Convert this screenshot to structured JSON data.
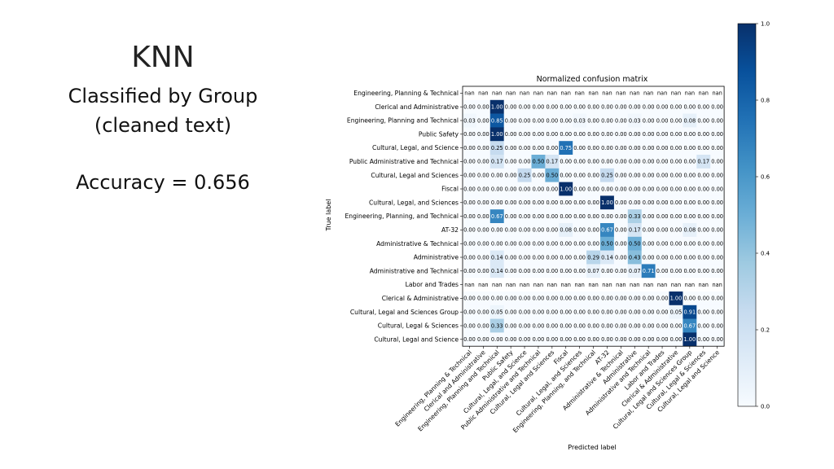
{
  "slide": {
    "title": "KNN",
    "subtitle_line1": "Classified by Group",
    "subtitle_line2": "(cleaned text)",
    "accuracy": "Accuracy = 0.656"
  },
  "chart_data": {
    "type": "heatmap",
    "title": "Normalized confusion matrix",
    "xlabel": "Predicted label",
    "ylabel": "True label",
    "labels": [
      "Engineering, Planning & Technical",
      "Clerical and Administrative",
      "Engineering, Planning and Technical",
      "Public Safety",
      "Cultural, Legal, and Science",
      "Public Administrative and Technical",
      "Cultural, Legal and Sciences",
      "Fiscal",
      "Cultural, Legal, and Sciences",
      "Engineering, Planning, and Technical",
      "AT-32",
      "Administrative & Technical",
      "Administrative",
      "Administrative and Technical",
      "Labor and Trades",
      "Clerical & Administrative",
      "Cultural, Legal and Sciences Group",
      "Cultural, Legal & Sciences",
      "Cultural, Legal and Science"
    ],
    "matrix": [
      [
        "nan",
        "nan",
        "nan",
        "nan",
        "nan",
        "nan",
        "nan",
        "nan",
        "nan",
        "nan",
        "nan",
        "nan",
        "nan",
        "nan",
        "nan",
        "nan",
        "nan",
        "nan",
        "nan"
      ],
      [
        0,
        0,
        1.0,
        0,
        0,
        0,
        0,
        0,
        0,
        0,
        0,
        0,
        0,
        0,
        0,
        0,
        0,
        0,
        0
      ],
      [
        0.03,
        0,
        0.85,
        0,
        0,
        0,
        0,
        0,
        0.03,
        0,
        0,
        0,
        0.03,
        0,
        0,
        0,
        0.08,
        0,
        0
      ],
      [
        0,
        0,
        1.0,
        0,
        0,
        0,
        0,
        0,
        0,
        0,
        0,
        0,
        0,
        0,
        0,
        0,
        0,
        0,
        0
      ],
      [
        0,
        0,
        0.25,
        0,
        0,
        0,
        0,
        0.75,
        0,
        0,
        0,
        0,
        0,
        0,
        0,
        0,
        0,
        0,
        0
      ],
      [
        0,
        0,
        0.17,
        0,
        0,
        0.5,
        0.17,
        0,
        0,
        0,
        0,
        0,
        0,
        0,
        0,
        0,
        0,
        0.17,
        0
      ],
      [
        0,
        0,
        0,
        0,
        0.25,
        0,
        0.5,
        0,
        0,
        0,
        0.25,
        0,
        0,
        0,
        0,
        0,
        0,
        0,
        0
      ],
      [
        0,
        0,
        0,
        0,
        0,
        0,
        0,
        1.0,
        0,
        0,
        0,
        0,
        0,
        0,
        0,
        0,
        0,
        0,
        0
      ],
      [
        0,
        0,
        0,
        0,
        0,
        0,
        0,
        0,
        0,
        0,
        1.0,
        0,
        0,
        0,
        0,
        0,
        0,
        0,
        0
      ],
      [
        0,
        0,
        0.67,
        0,
        0,
        0,
        0,
        0,
        0,
        0,
        0,
        0,
        0.33,
        0,
        0,
        0,
        0,
        0,
        0
      ],
      [
        0,
        0,
        0,
        0,
        0,
        0,
        0,
        0.08,
        0,
        0,
        0.67,
        0,
        0.17,
        0,
        0,
        0,
        0.08,
        0,
        0
      ],
      [
        0,
        0,
        0,
        0,
        0,
        0,
        0,
        0,
        0,
        0,
        0.5,
        0,
        0.5,
        0,
        0,
        0,
        0,
        0,
        0
      ],
      [
        0,
        0,
        0.14,
        0,
        0,
        0,
        0,
        0,
        0,
        0.29,
        0.14,
        0,
        0.43,
        0,
        0,
        0,
        0,
        0,
        0
      ],
      [
        0,
        0,
        0.14,
        0,
        0,
        0,
        0,
        0,
        0,
        0.07,
        0,
        0,
        0.07,
        0.71,
        0,
        0,
        0,
        0,
        0
      ],
      [
        "nan",
        "nan",
        "nan",
        "nan",
        "nan",
        "nan",
        "nan",
        "nan",
        "nan",
        "nan",
        "nan",
        "nan",
        "nan",
        "nan",
        "nan",
        "nan",
        "nan",
        "nan",
        "nan"
      ],
      [
        0,
        0,
        0,
        0,
        0,
        0,
        0,
        0,
        0,
        0,
        0,
        0,
        0,
        0,
        0,
        1.0,
        0,
        0,
        0
      ],
      [
        0,
        0,
        0.05,
        0,
        0,
        0,
        0,
        0,
        0,
        0,
        0,
        0,
        0,
        0,
        0,
        0.05,
        0.91,
        0,
        0
      ],
      [
        0,
        0,
        0.33,
        0,
        0,
        0,
        0,
        0,
        0,
        0,
        0,
        0,
        0,
        0,
        0,
        0,
        0.67,
        0,
        0
      ],
      [
        0,
        0,
        0,
        0,
        0,
        0,
        0,
        0,
        0,
        0,
        0,
        0,
        0,
        0,
        0,
        0,
        1.0,
        0,
        0
      ]
    ],
    "colorbar": {
      "range": [
        0,
        1.0
      ],
      "ticks": [
        "0.0",
        "0.2",
        "0.4",
        "0.6",
        "0.8",
        "1.0"
      ],
      "colormap": "Blues"
    },
    "colors": {
      "min": "#f7fbff",
      "max": "#08306b"
    }
  }
}
